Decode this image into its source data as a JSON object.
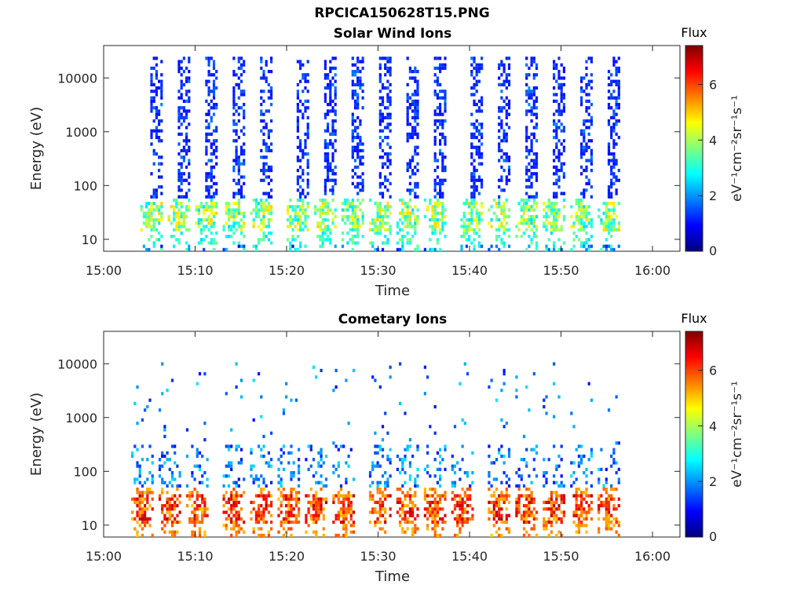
{
  "figure": {
    "title": "RPCICA150628T15.PNG"
  },
  "colormap": {
    "name": "jet",
    "stops": [
      "#00007f",
      "#0000ff",
      "#007fff",
      "#00ffff",
      "#7fff7f",
      "#ffff00",
      "#ff7f00",
      "#ff0000",
      "#7f0000"
    ]
  },
  "chart_data": [
    {
      "type": "heatmap",
      "title": "Solar Wind Ions",
      "xlabel": "Time",
      "ylabel": "Energy (eV)",
      "x_range": [
        "15:00",
        "16:03"
      ],
      "x_ticks": [
        "15:00",
        "15:10",
        "15:20",
        "15:30",
        "15:40",
        "15:50",
        "16:00"
      ],
      "y_scale": "log",
      "y_range": [
        6,
        40000
      ],
      "y_ticks": [
        10,
        100,
        1000,
        10000
      ],
      "y_tick_labels": [
        "10",
        "100",
        "1000",
        "10000"
      ],
      "colorbar": {
        "title": "Flux",
        "label": "eV⁻¹cm⁻²sr⁻¹s⁻¹",
        "range": [
          0,
          7.4
        ],
        "ticks": [
          0,
          2,
          4,
          6
        ],
        "tick_labels": [
          "0",
          "2",
          "4",
          "6"
        ]
      },
      "scan_start_times": [
        "15:04",
        "15:07",
        "15:10",
        "15:13",
        "15:16",
        "15:20",
        "15:23",
        "15:26",
        "15:29",
        "15:32",
        "15:35",
        "15:39",
        "15:42",
        "15:45",
        "15:48",
        "15:51",
        "15:54"
      ],
      "scan_duration_min": 2.6,
      "data_end_time": "15:57",
      "low_energy_band": {
        "energy_ev": [
          15,
          60
        ],
        "flux": [
          2.5,
          5
        ]
      },
      "high_energy_column": {
        "energy_ev": [
          30,
          25000
        ],
        "flux": [
          1,
          2
        ]
      }
    },
    {
      "type": "heatmap",
      "title": "Cometary Ions",
      "xlabel": "Time",
      "ylabel": "Energy (eV)",
      "x_range": [
        "15:00",
        "16:03"
      ],
      "x_ticks": [
        "15:00",
        "15:10",
        "15:20",
        "15:30",
        "15:40",
        "15:50",
        "16:00"
      ],
      "y_scale": "log",
      "y_range": [
        6,
        40000
      ],
      "y_ticks": [
        10,
        100,
        1000,
        10000
      ],
      "y_tick_labels": [
        "10",
        "100",
        "1000",
        "10000"
      ],
      "colorbar": {
        "title": "Flux",
        "label": "eV⁻¹cm⁻²sr⁻¹s⁻¹",
        "range": [
          0,
          7.4
        ],
        "ticks": [
          0,
          2,
          4,
          6
        ],
        "tick_labels": [
          "0",
          "2",
          "4",
          "6"
        ]
      },
      "scan_start_times": [
        "15:03",
        "15:06",
        "15:09",
        "15:13",
        "15:16",
        "15:19",
        "15:22",
        "15:25",
        "15:29",
        "15:32",
        "15:35",
        "15:38",
        "15:42",
        "15:45",
        "15:48",
        "15:51",
        "15:54"
      ],
      "scan_duration_min": 2.6,
      "data_end_time": "15:57",
      "low_energy_band": {
        "energy_ev": [
          12,
          50
        ],
        "flux": [
          5,
          7
        ]
      },
      "high_energy_scatter": {
        "energy_ev": [
          100,
          10000
        ],
        "flux": [
          1,
          2
        ]
      }
    }
  ]
}
